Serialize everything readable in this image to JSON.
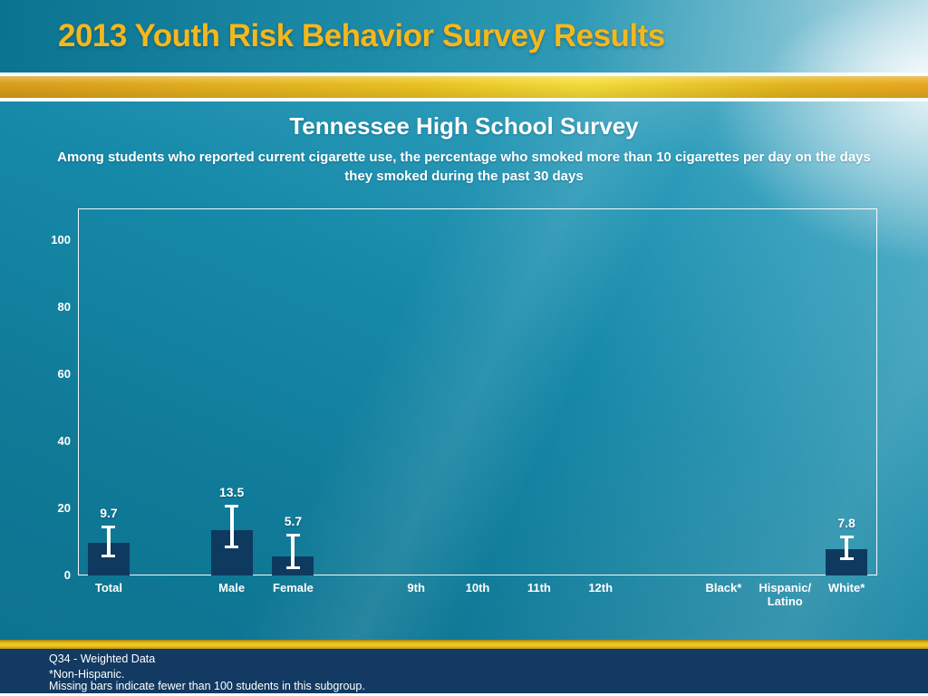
{
  "slide": {
    "header_title": "2013 Youth Risk Behavior Survey Results"
  },
  "chart": {
    "title": "Tennessee High School Survey",
    "subtitle": "Among students who reported current cigarette use, the percentage who smoked more than 10 cigarettes per day on the days they smoked during the past 30 days"
  },
  "footer": {
    "line1": "Q34 - Weighted Data",
    "line2": "*Non-Hispanic.",
    "line3": "Missing bars indicate fewer than 100 students in this subgroup."
  },
  "colors": {
    "bar": "#0f3a60",
    "error_bar": "#ffffff",
    "title_gold": "#f3b71f",
    "footer_navy": "#123a62",
    "background_teal": "#1689a8"
  },
  "chart_data": {
    "type": "bar",
    "title": "Tennessee High School Survey",
    "subtitle": "Among students who reported current cigarette use, the percentage who smoked more than 10 cigarettes per day on the days they smoked during the past 30 days",
    "categories": [
      "Total",
      "Male",
      "Female",
      "9th",
      "10th",
      "11th",
      "12th",
      "Black*",
      "Hispanic/\nLatino",
      "White*"
    ],
    "values": [
      9.7,
      13.5,
      5.7,
      null,
      null,
      null,
      null,
      null,
      null,
      7.8
    ],
    "value_labels": [
      "9.7",
      "13.5",
      "5.7",
      null,
      null,
      null,
      null,
      null,
      null,
      "7.8"
    ],
    "ci_low": [
      5.5,
      8.0,
      2.0,
      null,
      null,
      null,
      null,
      null,
      null,
      4.6
    ],
    "ci_high": [
      15.0,
      21.0,
      12.5,
      null,
      null,
      null,
      null,
      null,
      null,
      11.8
    ],
    "yticks": [
      0,
      20,
      40,
      60,
      80,
      100
    ],
    "ylim": [
      0,
      109
    ],
    "xlabel": "",
    "ylabel": "",
    "grid": false,
    "legend": "none",
    "error_bars": true,
    "layout": {
      "slots": 13,
      "slot_index": [
        0,
        2,
        3,
        5,
        6,
        7,
        8,
        10,
        11,
        12
      ]
    }
  }
}
